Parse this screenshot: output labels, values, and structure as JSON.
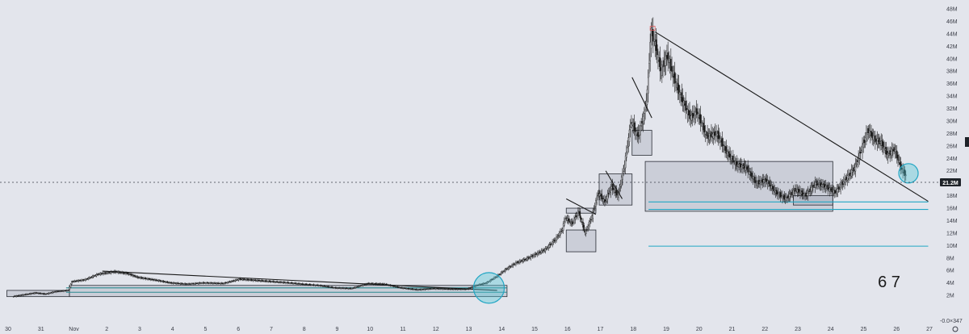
{
  "chart_data": {
    "type": "candlestick",
    "title": "",
    "xlabel": "",
    "ylabel": "",
    "x_ticks": [
      "30",
      "31",
      "Nov",
      "2",
      "3",
      "4",
      "5",
      "6",
      "7",
      "8",
      "9",
      "10",
      "11",
      "12",
      "13",
      "14",
      "15",
      "16",
      "17",
      "18",
      "19",
      "20",
      "21",
      "22",
      "23",
      "24",
      "25",
      "26",
      "27"
    ],
    "y_ticks": [
      "48M",
      "46M",
      "44M",
      "42M",
      "40M",
      "38M",
      "36M",
      "34M",
      "32M",
      "30M",
      "28M",
      "26M",
      "24M",
      "22M",
      "20M",
      "18M",
      "16M",
      "14M",
      "12M",
      "10M",
      "8M",
      "6M",
      "4M",
      "2M",
      "-0.0…"
    ],
    "ylim": [
      -2,
      48
    ],
    "y_unit": "M",
    "current_price": 21.2,
    "current_price_label": "21.2M",
    "bottom_right_label": "-0.0×347",
    "annotation_text": "6 7",
    "grid": false,
    "price_path_keypoints": [
      {
        "x": 29.2,
        "y": 1.8
      },
      {
        "x": 29.9,
        "y": 2.4
      },
      {
        "x": 30.2,
        "y": 2.2
      },
      {
        "x": 30.5,
        "y": 2.6
      },
      {
        "x": 30.9,
        "y": 2.8
      },
      {
        "x": 31.0,
        "y": 4.2
      },
      {
        "x": 31.4,
        "y": 4.5
      },
      {
        "x": 31.8,
        "y": 5.4
      },
      {
        "x": 32.3,
        "y": 5.8
      },
      {
        "x": 32.7,
        "y": 5.5
      },
      {
        "x": 33.0,
        "y": 4.9
      },
      {
        "x": 33.6,
        "y": 4.4
      },
      {
        "x": 34.0,
        "y": 4.0
      },
      {
        "x": 34.5,
        "y": 3.8
      },
      {
        "x": 35.0,
        "y": 4.0
      },
      {
        "x": 35.6,
        "y": 3.9
      },
      {
        "x": 36.1,
        "y": 4.6
      },
      {
        "x": 36.6,
        "y": 4.4
      },
      {
        "x": 37.1,
        "y": 4.2
      },
      {
        "x": 37.6,
        "y": 4.0
      },
      {
        "x": 38.0,
        "y": 3.8
      },
      {
        "x": 38.5,
        "y": 3.6
      },
      {
        "x": 39.0,
        "y": 3.2
      },
      {
        "x": 39.5,
        "y": 3.1
      },
      {
        "x": 40.0,
        "y": 3.9
      },
      {
        "x": 40.5,
        "y": 3.8
      },
      {
        "x": 41.0,
        "y": 3.2
      },
      {
        "x": 41.5,
        "y": 2.9
      },
      {
        "x": 42.0,
        "y": 3.1
      },
      {
        "x": 42.5,
        "y": 3.0
      },
      {
        "x": 43.0,
        "y": 3.0
      },
      {
        "x": 43.3,
        "y": 3.6
      },
      {
        "x": 43.6,
        "y": 4.0
      },
      {
        "x": 43.9,
        "y": 5.0
      },
      {
        "x": 44.2,
        "y": 6.2
      },
      {
        "x": 44.5,
        "y": 7.2
      },
      {
        "x": 44.8,
        "y": 7.8
      },
      {
        "x": 45.1,
        "y": 8.6
      },
      {
        "x": 45.4,
        "y": 9.4
      },
      {
        "x": 45.7,
        "y": 11.0
      },
      {
        "x": 45.9,
        "y": 12.5
      },
      {
        "x": 46.0,
        "y": 14.5
      },
      {
        "x": 46.2,
        "y": 13.5
      },
      {
        "x": 46.4,
        "y": 15.5
      },
      {
        "x": 46.6,
        "y": 12.0
      },
      {
        "x": 46.8,
        "y": 14.5
      },
      {
        "x": 47.0,
        "y": 18.5
      },
      {
        "x": 47.2,
        "y": 17.0
      },
      {
        "x": 47.4,
        "y": 19.5
      },
      {
        "x": 47.6,
        "y": 18.0
      },
      {
        "x": 47.8,
        "y": 23.0
      },
      {
        "x": 48.0,
        "y": 30.0
      },
      {
        "x": 48.2,
        "y": 27.5
      },
      {
        "x": 48.4,
        "y": 31.0
      },
      {
        "x": 48.5,
        "y": 35.0
      },
      {
        "x": 48.6,
        "y": 44.5
      },
      {
        "x": 48.75,
        "y": 42.0
      },
      {
        "x": 48.9,
        "y": 38.0
      },
      {
        "x": 49.1,
        "y": 40.5
      },
      {
        "x": 49.3,
        "y": 37.0
      },
      {
        "x": 49.5,
        "y": 34.0
      },
      {
        "x": 49.8,
        "y": 30.5
      },
      {
        "x": 50.0,
        "y": 31.5
      },
      {
        "x": 50.3,
        "y": 27.5
      },
      {
        "x": 50.6,
        "y": 28.0
      },
      {
        "x": 50.9,
        "y": 25.0
      },
      {
        "x": 51.2,
        "y": 23.0
      },
      {
        "x": 51.5,
        "y": 22.5
      },
      {
        "x": 51.8,
        "y": 20.0
      },
      {
        "x": 52.1,
        "y": 20.5
      },
      {
        "x": 52.4,
        "y": 18.5
      },
      {
        "x": 52.7,
        "y": 17.5
      },
      {
        "x": 53.0,
        "y": 19.0
      },
      {
        "x": 53.3,
        "y": 18.0
      },
      {
        "x": 53.6,
        "y": 20.0
      },
      {
        "x": 53.9,
        "y": 19.5
      },
      {
        "x": 54.2,
        "y": 18.5
      },
      {
        "x": 54.5,
        "y": 20.5
      },
      {
        "x": 54.8,
        "y": 22.5
      },
      {
        "x": 55.0,
        "y": 25.5
      },
      {
        "x": 55.2,
        "y": 28.5
      },
      {
        "x": 55.4,
        "y": 27.0
      },
      {
        "x": 55.6,
        "y": 26.5
      },
      {
        "x": 55.8,
        "y": 24.5
      },
      {
        "x": 56.0,
        "y": 25.5
      },
      {
        "x": 56.2,
        "y": 22.5
      },
      {
        "x": 56.35,
        "y": 21.2
      }
    ],
    "trend_lines": [
      {
        "name": "early-descending-trendline",
        "from": {
          "x": 31.9,
          "y": 5.9
        },
        "to": {
          "x": 43.9,
          "y": 2.8
        }
      },
      {
        "name": "main-descending-trendline",
        "from": {
          "x": 48.7,
          "y": 44.3
        },
        "to": {
          "x": 57.0,
          "y": 17.1
        }
      },
      {
        "name": "spike-trendline",
        "from": {
          "x": 48.0,
          "y": 37.0
        },
        "to": {
          "x": 48.6,
          "y": 30.5
        }
      },
      {
        "name": "flag-trendline-1",
        "from": {
          "x": 46.0,
          "y": 17.5
        },
        "to": {
          "x": 46.9,
          "y": 15.0
        }
      },
      {
        "name": "flag-trendline-2",
        "from": {
          "x": 47.2,
          "y": 22.0
        },
        "to": {
          "x": 47.7,
          "y": 17.5
        }
      }
    ],
    "horizontal_lines": [
      {
        "name": "support-level-1",
        "y": 17.0,
        "x_from": 48.5,
        "x_to": 57.0,
        "color": "#22a6c4"
      },
      {
        "name": "support-level-2",
        "y": 15.8,
        "x_from": 48.5,
        "x_to": 57.0,
        "color": "#22a6c4"
      },
      {
        "name": "support-level-3",
        "y": 9.9,
        "x_from": 48.5,
        "x_to": 57.0,
        "color": "#22a6c4"
      },
      {
        "name": "early-support-line-1",
        "y": 3.2,
        "x_from": 30.8,
        "x_to": 44.2,
        "color": "#2b8a8f"
      },
      {
        "name": "early-support-line-2",
        "y": 2.5,
        "x_from": 30.8,
        "x_to": 44.2,
        "color": "#2b8a8f"
      }
    ],
    "zones": [
      {
        "name": "early-range-box",
        "x_from": 30.9,
        "x_to": 44.2,
        "y_from": 1.8,
        "y_to": 3.6
      },
      {
        "name": "left-start-box",
        "x_from": 29.0,
        "x_to": 30.9,
        "y_from": 1.8,
        "y_to": 2.8
      },
      {
        "name": "mid-rally-box",
        "x_from": 46.0,
        "x_to": 46.9,
        "y_from": 9.0,
        "y_to": 12.5
      },
      {
        "name": "rally-flag-box",
        "x_from": 46.0,
        "x_to": 46.9,
        "y_from": 15.2,
        "y_to": 16.0
      },
      {
        "name": "upper-rally-box",
        "x_from": 47.0,
        "x_to": 48.0,
        "y_from": 16.5,
        "y_to": 21.5
      },
      {
        "name": "top-support-box",
        "x_from": 48.0,
        "x_to": 48.6,
        "y_from": 24.5,
        "y_to": 28.5
      },
      {
        "name": "consolidation-box",
        "x_from": 48.4,
        "x_to": 54.1,
        "y_from": 15.5,
        "y_to": 23.5
      },
      {
        "name": "base-accumulation-box",
        "x_from": 52.9,
        "x_to": 54.1,
        "y_from": 16.5,
        "y_to": 18.0
      }
    ],
    "circles": [
      {
        "name": "breakout-circle",
        "x": 43.65,
        "y": 3.2
      },
      {
        "name": "retest-circle",
        "x": 56.4,
        "y": 21.6
      }
    ],
    "colors": {
      "background": "#e3e5ec",
      "candle": "#1a1a1a",
      "trendline": "#1a1a1a",
      "teal_line": "#22a6c4",
      "circle_fill": "#4ec6d6",
      "price_tag": "#1e2228",
      "top_marker": "#e05a5a"
    }
  }
}
